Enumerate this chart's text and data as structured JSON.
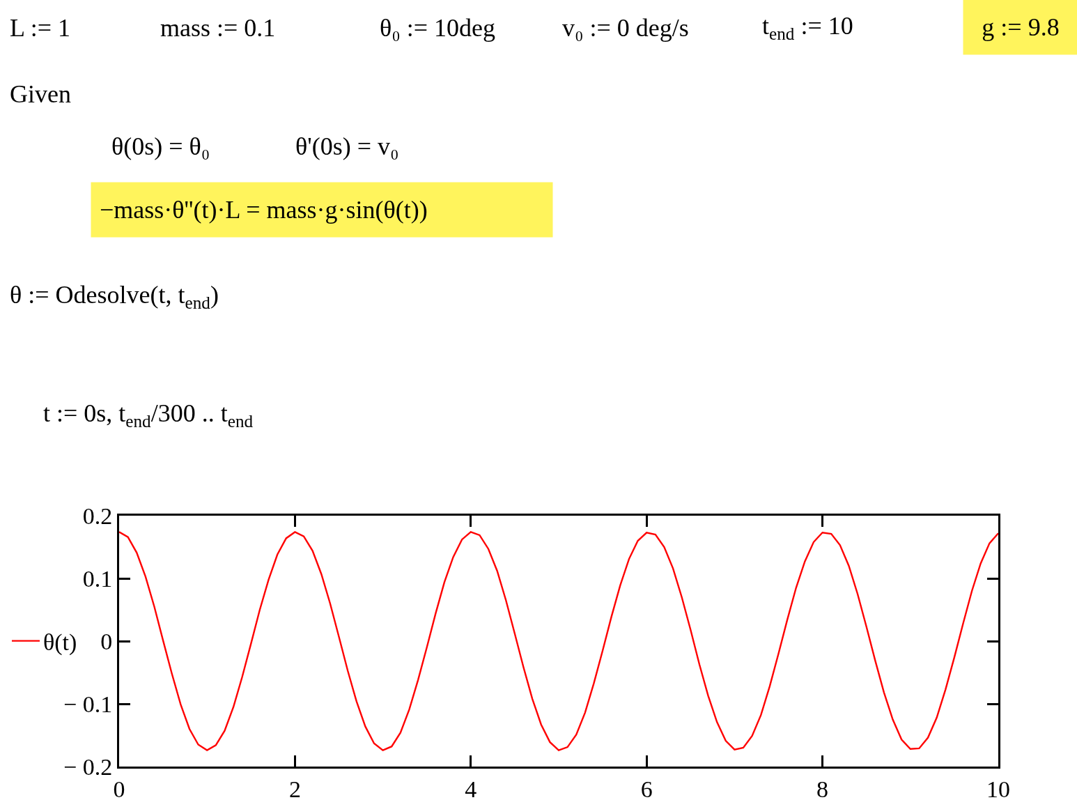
{
  "chart_data": {
    "type": "line",
    "annotations": [
      "L := 1",
      "mass := 0.1",
      "θ₀ := 10deg",
      "v₀ := 0 deg/s",
      "t$_{end}$ := 10",
      "g := 9.8",
      "Given",
      "θ(0s) = θ₀",
      "θ'(0s) = v₀",
      "−mass·θ''(t)·L = mass·g·sin(θ(t))",
      "θ := Odesolve(t, t$_{end}$)",
      "t := 0s, t$_{end}$/300 .. t$_{end}$"
    ],
    "x": [
      0,
      0.1,
      0.2,
      0.3,
      0.4,
      0.5,
      0.6,
      0.7,
      0.8,
      0.9,
      1,
      1.1,
      1.2,
      1.3,
      1.4,
      1.5,
      1.6,
      1.7,
      1.8,
      1.9,
      2,
      2.1,
      2.2,
      2.3,
      2.4,
      2.5,
      2.6,
      2.7,
      2.8,
      2.9,
      3,
      3.1,
      3.2,
      3.3,
      3.4,
      3.5,
      3.6,
      3.7,
      3.8,
      3.9,
      4,
      4.1,
      4.2,
      4.3,
      4.4,
      4.5,
      4.6,
      4.7,
      4.8,
      4.9,
      5,
      5.1,
      5.2,
      5.3,
      5.4,
      5.5,
      5.6,
      5.7,
      5.8,
      5.9,
      6,
      6.1,
      6.2,
      6.3,
      6.4,
      6.5,
      6.6,
      6.7,
      6.8,
      6.9,
      7,
      7.1,
      7.2,
      7.3,
      7.4,
      7.5,
      7.6,
      7.7,
      7.8,
      7.9,
      8,
      8.1,
      8.2,
      8.3,
      8.4,
      8.5,
      8.6,
      8.7,
      8.8,
      8.9,
      9,
      9.1,
      9.2,
      9.3,
      9.4,
      9.5,
      9.6,
      9.7,
      9.8,
      9.9,
      10
    ],
    "series": [
      {
        "name": "θ(t)",
        "color": "#ff0000",
        "values": [
          0.174,
          0.166,
          0.141,
          0.103,
          0.055,
          0.001,
          -0.052,
          -0.101,
          -0.14,
          -0.165,
          -0.174,
          -0.166,
          -0.143,
          -0.105,
          -0.057,
          -0.004,
          0.05,
          0.098,
          0.138,
          0.164,
          0.174,
          0.167,
          0.144,
          0.107,
          0.06,
          0.007,
          -0.047,
          -0.096,
          -0.136,
          -0.163,
          -0.174,
          -0.168,
          -0.146,
          -0.109,
          -0.062,
          -0.01,
          0.044,
          0.094,
          0.134,
          0.162,
          0.174,
          0.169,
          0.147,
          0.112,
          0.065,
          0.012,
          -0.042,
          -0.092,
          -0.133,
          -0.161,
          -0.174,
          -0.169,
          -0.149,
          -0.114,
          -0.067,
          -0.015,
          0.039,
          0.089,
          0.131,
          0.16,
          0.173,
          0.17,
          0.15,
          0.116,
          0.07,
          0.018,
          -0.037,
          -0.087,
          -0.129,
          -0.159,
          -0.173,
          -0.17,
          -0.151,
          -0.118,
          -0.072,
          -0.02,
          0.034,
          0.085,
          0.127,
          0.158,
          0.173,
          0.171,
          0.153,
          0.12,
          0.075,
          0.023,
          -0.031,
          -0.082,
          -0.125,
          -0.157,
          -0.172,
          -0.171,
          -0.154,
          -0.122,
          -0.077,
          -0.026,
          0.028,
          0.08,
          0.124,
          0.156,
          0.172
        ]
      }
    ],
    "xlim": [
      0,
      10
    ],
    "xticks": [
      0,
      2,
      4,
      6,
      8,
      10
    ],
    "ylim": [
      -0.2,
      0.2
    ],
    "yticks": [
      {
        "value": -0.2,
        "label": "− 0.2"
      },
      {
        "value": -0.1,
        "label": "− 0.1"
      },
      0,
      0.1,
      0.2
    ],
    "legend": "left"
  }
}
